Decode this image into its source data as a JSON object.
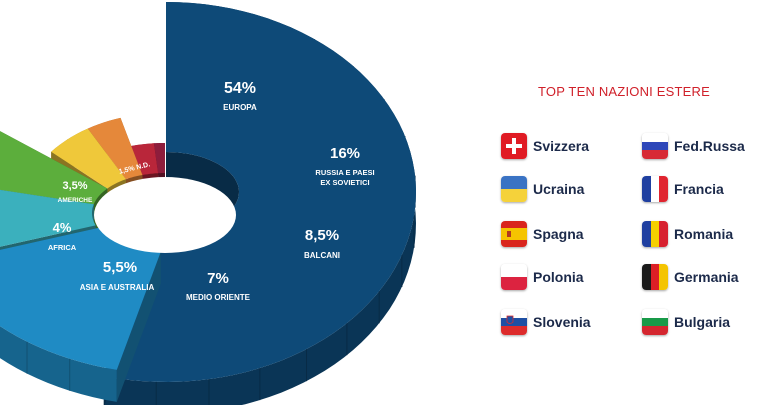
{
  "chart_data": {
    "type": "pie",
    "variant": "3d-donut",
    "slices": [
      {
        "label": "EUROPA",
        "value": 54,
        "value_text": "54%",
        "color": "#0e4a78"
      },
      {
        "label": "RUSSIA E PAESI EX SOVIETICI",
        "label_lines": [
          "RUSSIA E PAESI",
          "EX SOVIETICI"
        ],
        "value": 16,
        "value_text": "16%",
        "color": "#1f8bc4"
      },
      {
        "label": "BALCANI",
        "value": 8.5,
        "value_text": "8,5%",
        "color": "#3bb0bd"
      },
      {
        "label": "MEDIO ORIENTE",
        "value": 7,
        "value_text": "7%",
        "color": "#5cae3c"
      },
      {
        "label": "ASIA E AUSTRALIA",
        "value": 5.5,
        "value_text": "5,5%",
        "color": "#efc83a"
      },
      {
        "label": "AFRICA",
        "value": 4,
        "value_text": "4%",
        "color": "#e5883a"
      },
      {
        "label": "AMERICHE",
        "value": 3.5,
        "value_text": "3,5%",
        "color": "#b9263a"
      },
      {
        "label": "N.D.",
        "value": 1.5,
        "value_text": "1,5%",
        "color": "#8e1d3c"
      }
    ],
    "legend_title": "TOP TEN NAZIONI ESTERE",
    "countries": [
      {
        "name": "Svizzera",
        "flag": "switzerland-flag"
      },
      {
        "name": "Ucraina",
        "flag": "ukraine-flag"
      },
      {
        "name": "Spagna",
        "flag": "spain-flag"
      },
      {
        "name": "Polonia",
        "flag": "poland-flag"
      },
      {
        "name": "Slovenia",
        "flag": "slovenia-flag"
      },
      {
        "name": "Fed.Russa",
        "flag": "russia-flag"
      },
      {
        "name": "Francia",
        "flag": "france-flag"
      },
      {
        "name": "Romania",
        "flag": "romania-flag"
      },
      {
        "name": "Germania",
        "flag": "germany-flag"
      },
      {
        "name": "Bulgaria",
        "flag": "bulgaria-flag"
      }
    ]
  }
}
